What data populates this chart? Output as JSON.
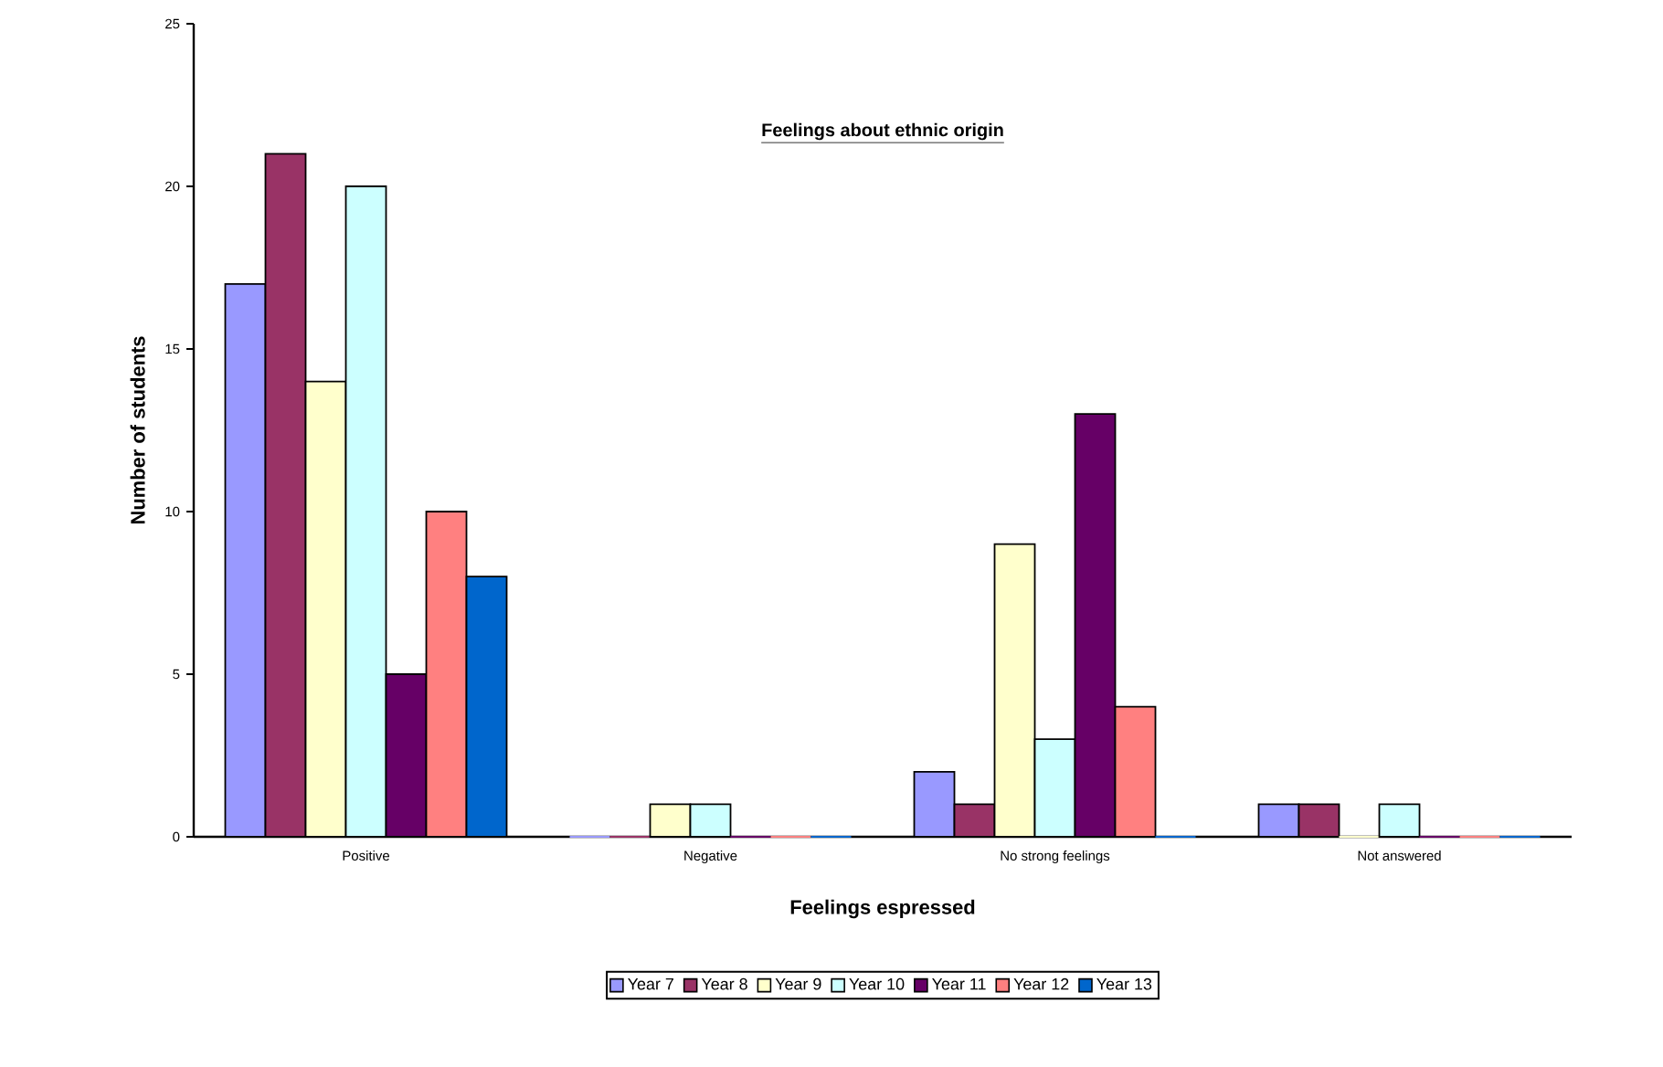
{
  "chart_data": {
    "type": "bar",
    "title": "Feelings about ethnic origin",
    "xlabel": "Feelings espressed",
    "ylabel": "Number of students",
    "categories": [
      "Positive",
      "Negative",
      "No strong feelings",
      "Not answered"
    ],
    "series": [
      {
        "name": "Year 7",
        "color": "#9999ff",
        "values": [
          17,
          0,
          2,
          1
        ]
      },
      {
        "name": "Year 8",
        "color": "#993366",
        "values": [
          21,
          0,
          1,
          1
        ]
      },
      {
        "name": "Year 9",
        "color": "#ffffcc",
        "values": [
          14,
          1,
          9,
          0
        ]
      },
      {
        "name": "Year 10",
        "color": "#ccffff",
        "values": [
          20,
          1,
          3,
          1
        ]
      },
      {
        "name": "Year 11",
        "color": "#660066",
        "values": [
          5,
          0,
          13,
          0
        ]
      },
      {
        "name": "Year 12",
        "color": "#ff8080",
        "values": [
          10,
          0,
          4,
          0
        ]
      },
      {
        "name": "Year 13",
        "color": "#0066cc",
        "values": [
          8,
          0,
          0,
          0
        ]
      }
    ],
    "ylim": [
      0,
      25
    ],
    "yticks": [
      0,
      5,
      10,
      15,
      20,
      25
    ],
    "legend": "bottom"
  }
}
